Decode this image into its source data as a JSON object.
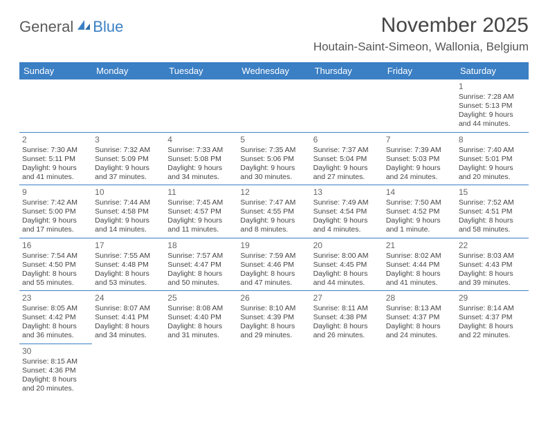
{
  "brand": {
    "part1": "General",
    "part2": "Blue"
  },
  "title": "November 2025",
  "location": "Houtain-Saint-Simeon, Wallonia, Belgium",
  "colors": {
    "header_bg": "#3b7fc4",
    "header_fg": "#ffffff",
    "cell_border": "#3b7fc4",
    "text": "#444444",
    "logo_gray": "#5a5a5a",
    "logo_blue": "#3b7fc4"
  },
  "weekdays": [
    "Sunday",
    "Monday",
    "Tuesday",
    "Wednesday",
    "Thursday",
    "Friday",
    "Saturday"
  ],
  "weeks": [
    [
      null,
      null,
      null,
      null,
      null,
      null,
      {
        "n": "1",
        "sr": "Sunrise: 7:28 AM",
        "ss": "Sunset: 5:13 PM",
        "dl1": "Daylight: 9 hours",
        "dl2": "and 44 minutes."
      }
    ],
    [
      {
        "n": "2",
        "sr": "Sunrise: 7:30 AM",
        "ss": "Sunset: 5:11 PM",
        "dl1": "Daylight: 9 hours",
        "dl2": "and 41 minutes."
      },
      {
        "n": "3",
        "sr": "Sunrise: 7:32 AM",
        "ss": "Sunset: 5:09 PM",
        "dl1": "Daylight: 9 hours",
        "dl2": "and 37 minutes."
      },
      {
        "n": "4",
        "sr": "Sunrise: 7:33 AM",
        "ss": "Sunset: 5:08 PM",
        "dl1": "Daylight: 9 hours",
        "dl2": "and 34 minutes."
      },
      {
        "n": "5",
        "sr": "Sunrise: 7:35 AM",
        "ss": "Sunset: 5:06 PM",
        "dl1": "Daylight: 9 hours",
        "dl2": "and 30 minutes."
      },
      {
        "n": "6",
        "sr": "Sunrise: 7:37 AM",
        "ss": "Sunset: 5:04 PM",
        "dl1": "Daylight: 9 hours",
        "dl2": "and 27 minutes."
      },
      {
        "n": "7",
        "sr": "Sunrise: 7:39 AM",
        "ss": "Sunset: 5:03 PM",
        "dl1": "Daylight: 9 hours",
        "dl2": "and 24 minutes."
      },
      {
        "n": "8",
        "sr": "Sunrise: 7:40 AM",
        "ss": "Sunset: 5:01 PM",
        "dl1": "Daylight: 9 hours",
        "dl2": "and 20 minutes."
      }
    ],
    [
      {
        "n": "9",
        "sr": "Sunrise: 7:42 AM",
        "ss": "Sunset: 5:00 PM",
        "dl1": "Daylight: 9 hours",
        "dl2": "and 17 minutes."
      },
      {
        "n": "10",
        "sr": "Sunrise: 7:44 AM",
        "ss": "Sunset: 4:58 PM",
        "dl1": "Daylight: 9 hours",
        "dl2": "and 14 minutes."
      },
      {
        "n": "11",
        "sr": "Sunrise: 7:45 AM",
        "ss": "Sunset: 4:57 PM",
        "dl1": "Daylight: 9 hours",
        "dl2": "and 11 minutes."
      },
      {
        "n": "12",
        "sr": "Sunrise: 7:47 AM",
        "ss": "Sunset: 4:55 PM",
        "dl1": "Daylight: 9 hours",
        "dl2": "and 8 minutes."
      },
      {
        "n": "13",
        "sr": "Sunrise: 7:49 AM",
        "ss": "Sunset: 4:54 PM",
        "dl1": "Daylight: 9 hours",
        "dl2": "and 4 minutes."
      },
      {
        "n": "14",
        "sr": "Sunrise: 7:50 AM",
        "ss": "Sunset: 4:52 PM",
        "dl1": "Daylight: 9 hours",
        "dl2": "and 1 minute."
      },
      {
        "n": "15",
        "sr": "Sunrise: 7:52 AM",
        "ss": "Sunset: 4:51 PM",
        "dl1": "Daylight: 8 hours",
        "dl2": "and 58 minutes."
      }
    ],
    [
      {
        "n": "16",
        "sr": "Sunrise: 7:54 AM",
        "ss": "Sunset: 4:50 PM",
        "dl1": "Daylight: 8 hours",
        "dl2": "and 55 minutes."
      },
      {
        "n": "17",
        "sr": "Sunrise: 7:55 AM",
        "ss": "Sunset: 4:48 PM",
        "dl1": "Daylight: 8 hours",
        "dl2": "and 53 minutes."
      },
      {
        "n": "18",
        "sr": "Sunrise: 7:57 AM",
        "ss": "Sunset: 4:47 PM",
        "dl1": "Daylight: 8 hours",
        "dl2": "and 50 minutes."
      },
      {
        "n": "19",
        "sr": "Sunrise: 7:59 AM",
        "ss": "Sunset: 4:46 PM",
        "dl1": "Daylight: 8 hours",
        "dl2": "and 47 minutes."
      },
      {
        "n": "20",
        "sr": "Sunrise: 8:00 AM",
        "ss": "Sunset: 4:45 PM",
        "dl1": "Daylight: 8 hours",
        "dl2": "and 44 minutes."
      },
      {
        "n": "21",
        "sr": "Sunrise: 8:02 AM",
        "ss": "Sunset: 4:44 PM",
        "dl1": "Daylight: 8 hours",
        "dl2": "and 41 minutes."
      },
      {
        "n": "22",
        "sr": "Sunrise: 8:03 AM",
        "ss": "Sunset: 4:43 PM",
        "dl1": "Daylight: 8 hours",
        "dl2": "and 39 minutes."
      }
    ],
    [
      {
        "n": "23",
        "sr": "Sunrise: 8:05 AM",
        "ss": "Sunset: 4:42 PM",
        "dl1": "Daylight: 8 hours",
        "dl2": "and 36 minutes."
      },
      {
        "n": "24",
        "sr": "Sunrise: 8:07 AM",
        "ss": "Sunset: 4:41 PM",
        "dl1": "Daylight: 8 hours",
        "dl2": "and 34 minutes."
      },
      {
        "n": "25",
        "sr": "Sunrise: 8:08 AM",
        "ss": "Sunset: 4:40 PM",
        "dl1": "Daylight: 8 hours",
        "dl2": "and 31 minutes."
      },
      {
        "n": "26",
        "sr": "Sunrise: 8:10 AM",
        "ss": "Sunset: 4:39 PM",
        "dl1": "Daylight: 8 hours",
        "dl2": "and 29 minutes."
      },
      {
        "n": "27",
        "sr": "Sunrise: 8:11 AM",
        "ss": "Sunset: 4:38 PM",
        "dl1": "Daylight: 8 hours",
        "dl2": "and 26 minutes."
      },
      {
        "n": "28",
        "sr": "Sunrise: 8:13 AM",
        "ss": "Sunset: 4:37 PM",
        "dl1": "Daylight: 8 hours",
        "dl2": "and 24 minutes."
      },
      {
        "n": "29",
        "sr": "Sunrise: 8:14 AM",
        "ss": "Sunset: 4:37 PM",
        "dl1": "Daylight: 8 hours",
        "dl2": "and 22 minutes."
      }
    ],
    [
      {
        "n": "30",
        "sr": "Sunrise: 8:15 AM",
        "ss": "Sunset: 4:36 PM",
        "dl1": "Daylight: 8 hours",
        "dl2": "and 20 minutes."
      },
      null,
      null,
      null,
      null,
      null,
      null
    ]
  ]
}
